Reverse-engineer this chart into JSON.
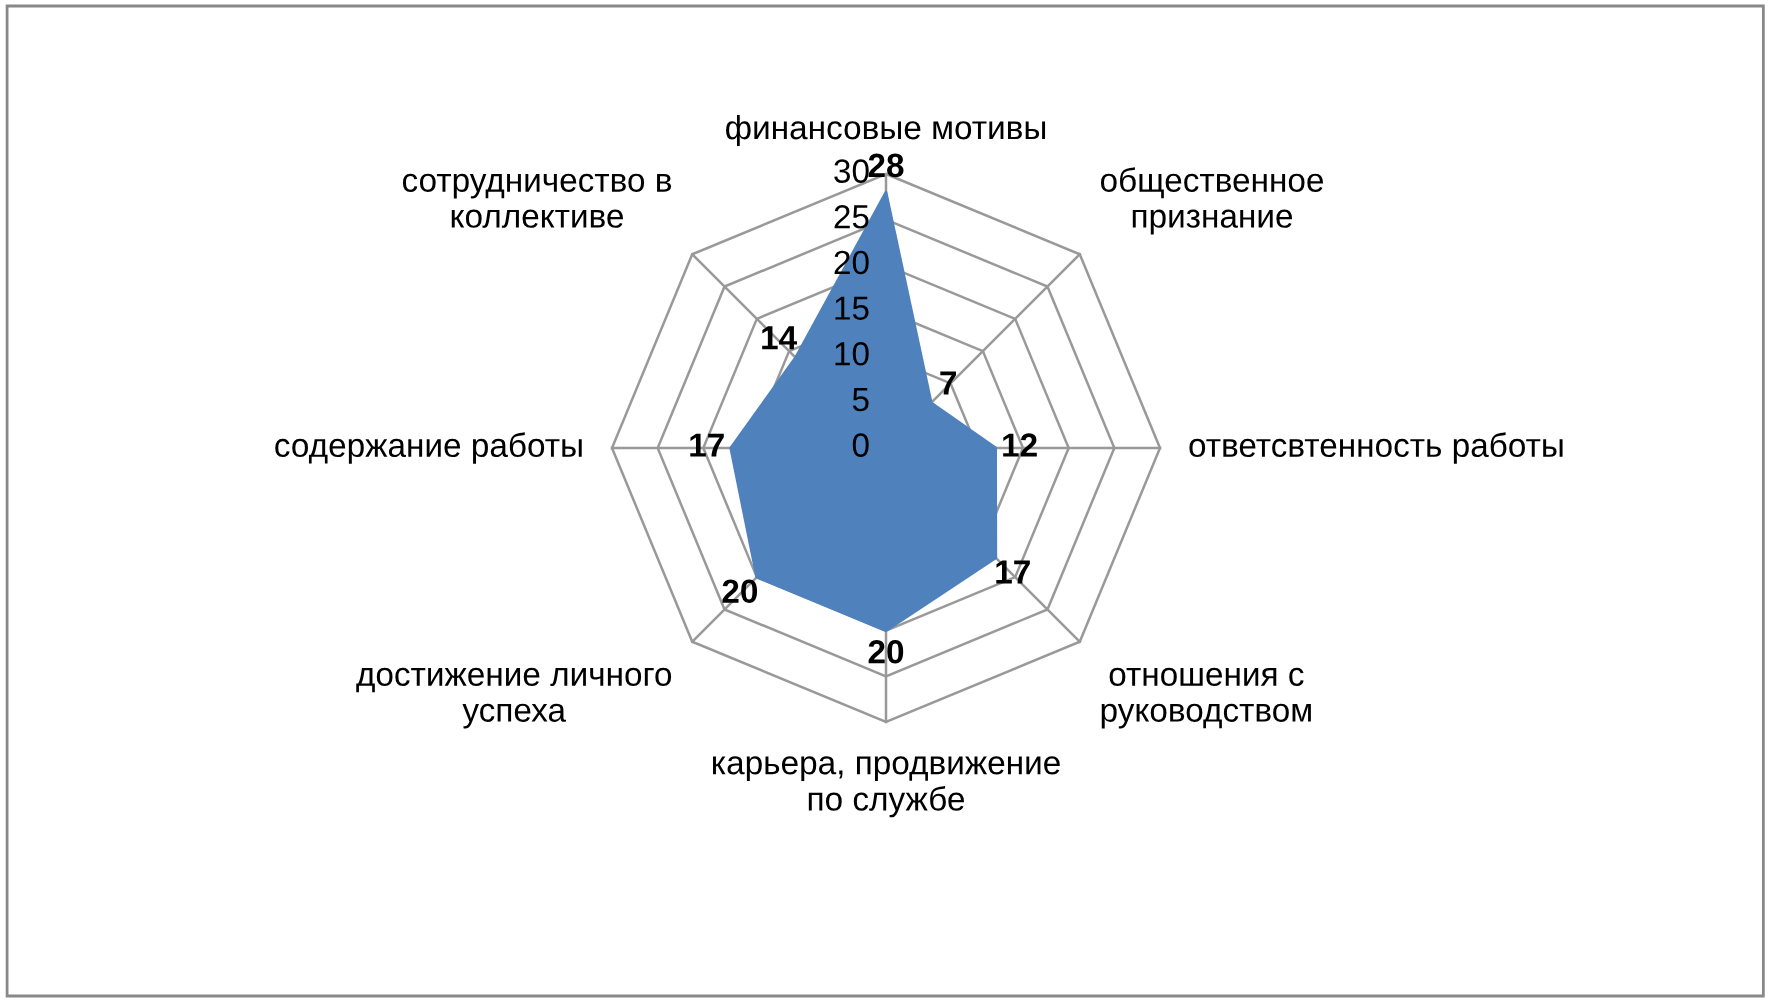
{
  "chart_data": {
    "type": "radar",
    "categories": [
      "финансовые мотивы",
      "общественное\nпризнание",
      "ответсвтенность работы",
      "отношения с\nруководством",
      "карьера, продвижение\nпо службе",
      "достижение личного\nуспеха",
      "содержание работы",
      "сотрудничество в\nколлективе"
    ],
    "series": [
      {
        "type": "area",
        "color": "#4f81bd",
        "values": [
          28,
          7,
          12,
          17,
          20,
          20,
          17,
          14
        ]
      }
    ],
    "ylim": [
      0,
      30
    ],
    "yticks": [
      0,
      5,
      10,
      15,
      20,
      25,
      30
    ],
    "grid": true,
    "data_labels": true
  }
}
